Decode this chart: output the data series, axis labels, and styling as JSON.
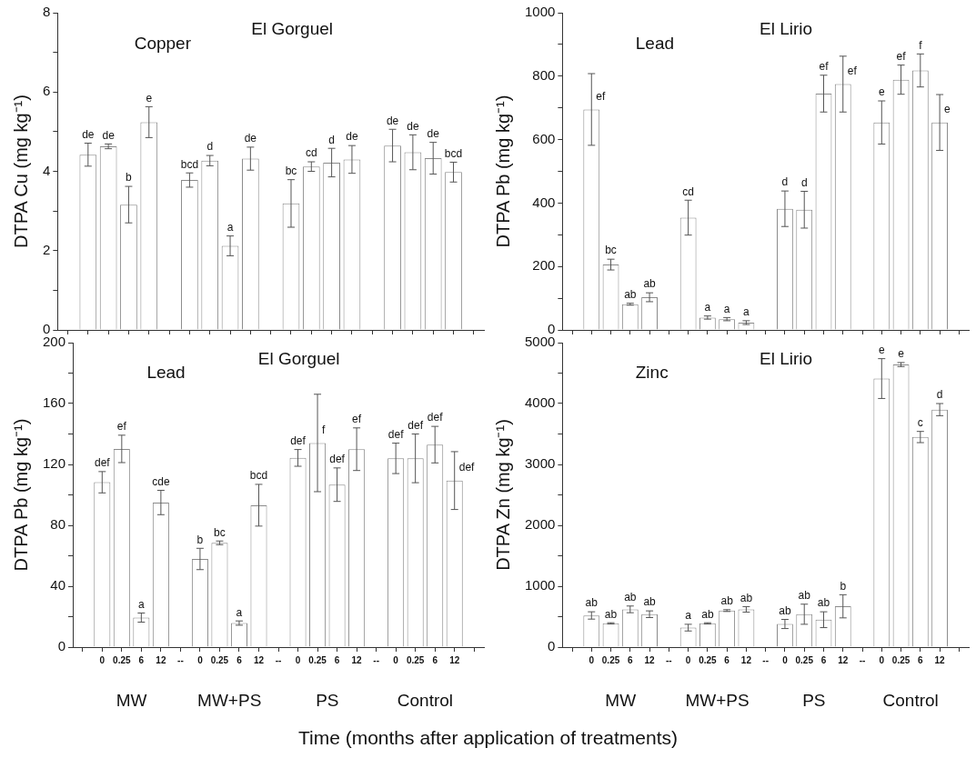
{
  "chart_data": [
    {
      "type": "bar",
      "title": "El Gorguel",
      "subtitle": "Copper",
      "ylabel": "DTPA Cu (mg kg⁻¹)",
      "color": "#ffffff",
      "grid": false,
      "legend": false,
      "tick_labels": "y",
      "categories": [
        null,
        null,
        null,
        null,
        null,
        null,
        null,
        null,
        null,
        null,
        null,
        null,
        null,
        null,
        null,
        null,
        null,
        null,
        null,
        null,
        null
      ],
      "values": [
        null,
        4.42,
        4.63,
        3.16,
        5.24,
        null,
        3.78,
        4.27,
        2.12,
        4.32,
        null,
        3.19,
        4.12,
        4.22,
        4.3,
        null,
        4.65,
        4.48,
        4.33,
        3.98,
        null
      ],
      "errors": [
        null,
        0.29,
        0.06,
        0.46,
        0.39,
        null,
        0.18,
        0.13,
        0.25,
        0.29,
        null,
        0.6,
        0.12,
        0.36,
        0.35,
        null,
        0.41,
        0.44,
        0.4,
        0.25,
        null
      ],
      "value_labels": [
        null,
        "de",
        "de",
        "b",
        "e",
        null,
        "bcd",
        "d",
        "a",
        "de",
        null,
        "bc",
        "cd",
        "d",
        "de",
        null,
        "de",
        "de",
        "de",
        "bcd",
        null
      ],
      "ylim": [
        0,
        8
      ],
      "yticks": [
        0,
        {
          "value": 1,
          "label": null
        },
        2,
        {
          "value": 3,
          "label": null
        },
        4,
        {
          "value": 5,
          "label": null
        },
        6,
        {
          "value": 7,
          "label": null
        },
        8
      ]
    },
    {
      "type": "bar",
      "title": "El Lirio",
      "subtitle": "Lead",
      "ylabel": "DTPA Pb (mg kg⁻¹)",
      "color": "#ffffff",
      "grid": false,
      "legend": false,
      "tick_labels": "y",
      "categories": [
        null,
        null,
        null,
        null,
        null,
        null,
        null,
        null,
        null,
        null,
        null,
        null,
        null,
        null,
        null,
        null,
        null,
        null,
        null,
        null,
        null
      ],
      "values": [
        null,
        695,
        206,
        81,
        103,
        null,
        354,
        39,
        34,
        23,
        null,
        382,
        379,
        745,
        775,
        null,
        654,
        789,
        818,
        654,
        null
      ],
      "errors": [
        null,
        113,
        17,
        3,
        14,
        null,
        55,
        5,
        5,
        6,
        null,
        56,
        58,
        58,
        88,
        null,
        68,
        46,
        52,
        88,
        null
      ],
      "value_labels": [
        null,
        "ef",
        "bc",
        "ab",
        "ab",
        null,
        "cd",
        "a",
        "a",
        "a",
        null,
        "d",
        "d",
        "ef",
        "ef",
        null,
        "e",
        "ef",
        "f",
        "e",
        null
      ],
      "ylim": [
        0,
        1000
      ],
      "yticks": [
        0,
        {
          "value": 100,
          "label": null
        },
        200,
        {
          "value": 300,
          "label": null
        },
        400,
        {
          "value": 500,
          "label": null
        },
        600,
        {
          "value": 700,
          "label": null
        },
        800,
        {
          "value": 900,
          "label": null
        },
        1000
      ]
    },
    {
      "type": "bar",
      "title": "El Gorguel",
      "subtitle": "Lead",
      "ylabel": "DTPA Pb (mg kg⁻¹)",
      "xlabel": "Time (months after application of treatments)",
      "color": "#ffffff",
      "grid": false,
      "legend": false,
      "annotations": [
        "MW",
        "MW+PS",
        "PS",
        "Control"
      ],
      "categories": [
        null,
        "0",
        "0.25",
        "6",
        "12",
        "--",
        "0",
        "0.25",
        "6",
        "12",
        "--",
        "0",
        "0.25",
        "6",
        "12",
        "--",
        "0",
        "0.25",
        "6",
        "12",
        null
      ],
      "values": [
        null,
        108.3,
        130.2,
        19.4,
        95,
        null,
        57.9,
        68.5,
        15.8,
        93.2,
        null,
        124.3,
        134.1,
        106.7,
        130,
        null,
        124,
        124,
        133,
        109.4,
        null
      ],
      "errors": [
        null,
        7,
        9,
        3,
        8,
        null,
        7,
        1.2,
        1.4,
        13.7,
        null,
        5.5,
        32,
        11,
        14,
        null,
        10,
        16,
        12,
        19,
        null
      ],
      "value_labels": [
        null,
        "def",
        "ef",
        "a",
        "cde",
        null,
        "b",
        "bc",
        "a",
        "bcd",
        null,
        "def",
        "f",
        "def",
        "ef",
        null,
        "def",
        "def",
        "def",
        "def",
        null
      ],
      "ylim": [
        0,
        200
      ],
      "yticks": [
        0,
        {
          "value": 20,
          "label": null
        },
        40,
        {
          "value": 60,
          "label": null
        },
        80,
        {
          "value": 100,
          "label": null
        },
        120,
        {
          "value": 140,
          "label": null
        },
        160,
        {
          "value": 180,
          "label": null
        },
        200
      ]
    },
    {
      "type": "bar",
      "title": "El Lirio",
      "subtitle": "Zinc",
      "ylabel": "DTPA Zn (mg kg⁻¹)",
      "color": "#ffffff",
      "grid": false,
      "legend": false,
      "annotations": [
        "MW",
        "MW+PS",
        "PS",
        "Control"
      ],
      "categories": [
        null,
        "0",
        "0.25",
        "6",
        "12",
        "--",
        "0",
        "0.25",
        "6",
        "12",
        "--",
        "0",
        "0.25",
        "6",
        "12",
        "--",
        "0",
        "0.25",
        "6",
        "12",
        null
      ],
      "values": [
        null,
        520,
        390,
        620,
        540,
        null,
        320,
        390,
        600,
        620,
        null,
        380,
        540,
        450,
        670,
        null,
        4410,
        4640,
        3450,
        3900,
        null
      ],
      "errors": [
        null,
        60,
        10,
        55,
        55,
        null,
        55,
        10,
        15,
        45,
        null,
        75,
        165,
        130,
        190,
        null,
        327,
        33,
        92,
        100,
        null
      ],
      "value_labels": [
        null,
        "ab",
        "ab",
        "ab",
        "ab",
        null,
        "a",
        "ab",
        "ab",
        "ab",
        null,
        "ab",
        "ab",
        "ab",
        "b",
        null,
        "e",
        "e",
        "c",
        "d",
        null
      ],
      "ylim": [
        0,
        5000
      ],
      "yticks": [
        0,
        {
          "value": 500,
          "label": null
        },
        1000,
        {
          "value": 1500,
          "label": null
        },
        2000,
        {
          "value": 2500,
          "label": null
        },
        3000,
        {
          "value": 3500,
          "label": null
        },
        4000,
        {
          "value": 4500,
          "label": null
        },
        5000
      ]
    }
  ]
}
